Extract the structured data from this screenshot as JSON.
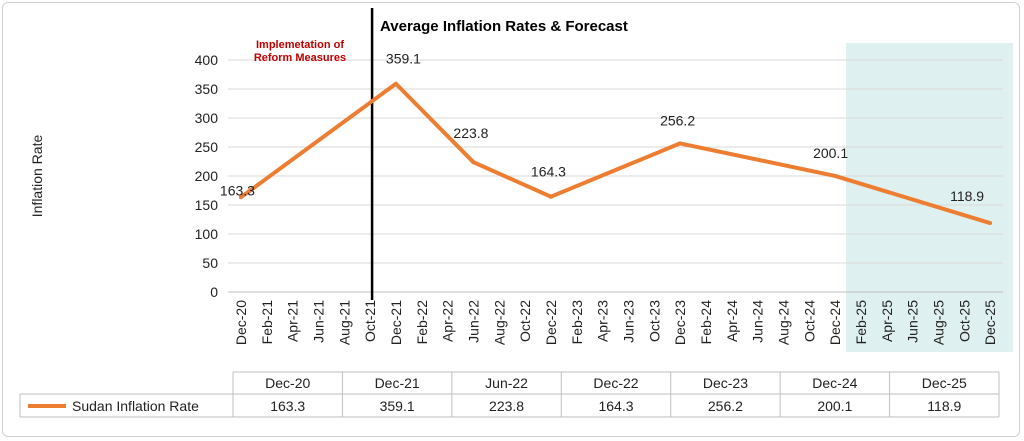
{
  "chart_data": {
    "type": "line",
    "title": "Average Inflation Rates & Forecast",
    "ylabel": "Inflation Rate",
    "xlabel": "",
    "ylim": [
      0,
      400
    ],
    "yticks": [
      0,
      50,
      100,
      150,
      200,
      250,
      300,
      350,
      400
    ],
    "grid": true,
    "categories": [
      "Dec-20",
      "Feb-21",
      "Apr-21",
      "Jun-21",
      "Aug-21",
      "Oct-21",
      "Dec-21",
      "Feb-22",
      "Apr-22",
      "Jun-22",
      "Aug-22",
      "Oct-22",
      "Dec-22",
      "Feb-23",
      "Apr-23",
      "Jun-23",
      "Oct-23",
      "Dec-23",
      "Feb-24",
      "Apr-24",
      "Jun-24",
      "Aug-24",
      "Oct-24",
      "Dec-24",
      "Feb-25",
      "Apr-25",
      "Jun-25",
      "Aug-25",
      "Oct-25",
      "Dec-25"
    ],
    "series": [
      {
        "name": "Sudan Inflation Rate",
        "color": "#ed7d31",
        "points": [
          {
            "x": "Dec-20",
            "y": 163.3
          },
          {
            "x": "Dec-21",
            "y": 359.1
          },
          {
            "x": "Jun-22",
            "y": 223.8
          },
          {
            "x": "Dec-22",
            "y": 164.3
          },
          {
            "x": "Dec-23",
            "y": 256.2
          },
          {
            "x": "Dec-24",
            "y": 200.1
          },
          {
            "x": "Dec-25",
            "y": 118.9
          }
        ]
      }
    ],
    "annotations": [
      {
        "text_line1": "Implemetation of",
        "text_line2": "Reform Measures",
        "at": "Oct-21",
        "color": "#c00000"
      }
    ],
    "forecast_region": {
      "from": "Feb-25",
      "to": "Dec-25",
      "color": "#dff0f0"
    },
    "data_table": {
      "headers": [
        "Dec-20",
        "Dec-21",
        "Jun-22",
        "Dec-22",
        "Dec-23",
        "Dec-24",
        "Dec-25"
      ],
      "series_label": "Sudan Inflation Rate",
      "values": [
        "163.3",
        "359.1",
        "223.8",
        "164.3",
        "256.2",
        "200.1",
        "118.9"
      ]
    }
  }
}
